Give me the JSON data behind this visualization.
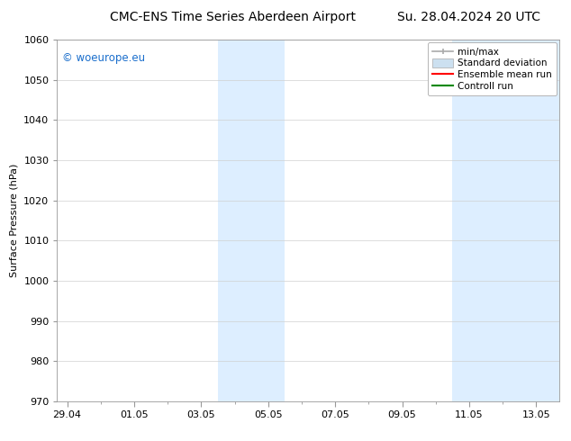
{
  "title_left": "CMC-ENS Time Series Aberdeen Airport",
  "title_right": "Su. 28.04.2024 20 UTC",
  "ylabel": "Surface Pressure (hPa)",
  "ylim": [
    970,
    1060
  ],
  "yticks": [
    970,
    980,
    990,
    1000,
    1010,
    1020,
    1030,
    1040,
    1050,
    1060
  ],
  "xtick_labels": [
    "29.04",
    "01.05",
    "03.05",
    "05.05",
    "07.05",
    "09.05",
    "11.05",
    "13.05"
  ],
  "xtick_positions": [
    0,
    2,
    4,
    6,
    8,
    10,
    12,
    14
  ],
  "xlim": [
    -0.3,
    14.7
  ],
  "shaded_bands": [
    {
      "x_start": 4.5,
      "x_end": 6.5
    },
    {
      "x_start": 11.5,
      "x_end": 12.5
    },
    {
      "x_start": 12.5,
      "x_end": 14.7
    }
  ],
  "shade_color": "#ddeeff",
  "watermark_text": "© woeurope.eu",
  "watermark_color": "#1a6ecc",
  "legend_labels": [
    "min/max",
    "Standard deviation",
    "Ensemble mean run",
    "Controll run"
  ],
  "legend_colors": [
    "#aaaaaa",
    "#cce0f0",
    "#ff0000",
    "#008800"
  ],
  "bg_color": "#ffffff",
  "plot_bg_color": "#ffffff",
  "grid_color": "#d0d0d0",
  "title_fontsize": 10,
  "axis_fontsize": 8,
  "tick_fontsize": 8,
  "legend_fontsize": 7.5
}
